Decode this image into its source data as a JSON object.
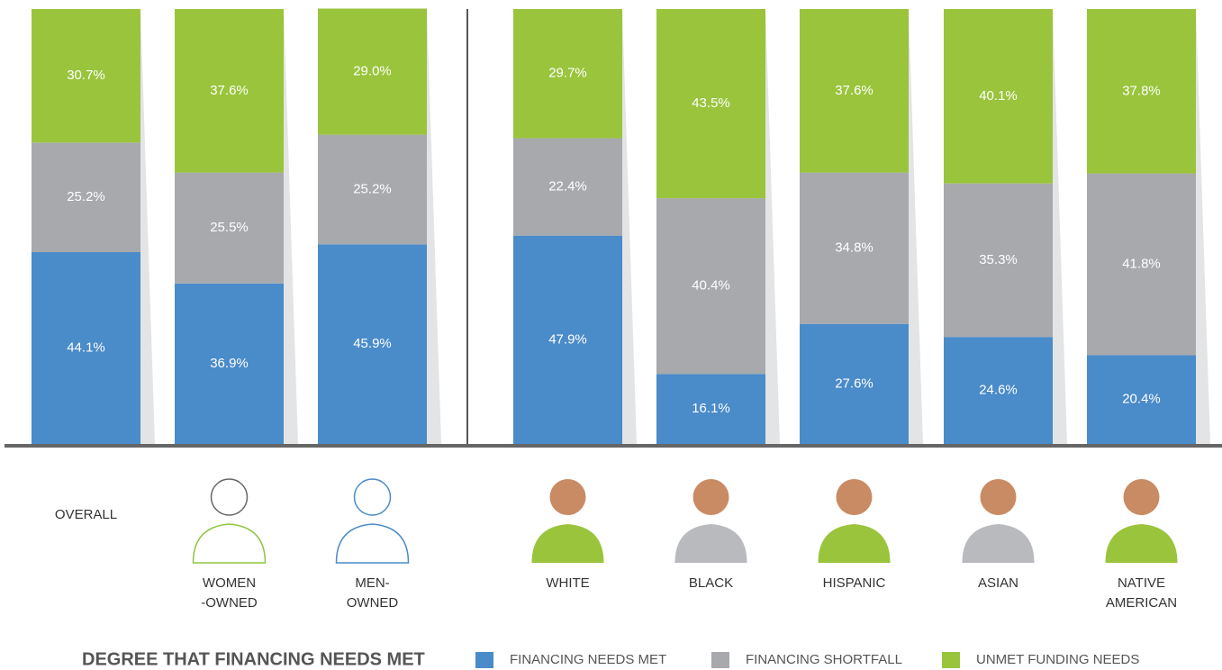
{
  "chart_data": {
    "type": "stacked_bar",
    "categories": [
      [
        "OVERALL"
      ],
      [
        "WOMEN",
        "-OWNED"
      ],
      [
        "MEN-",
        "OWNED"
      ],
      [
        "WHITE"
      ],
      [
        "BLACK"
      ],
      [
        "HISPANIC"
      ],
      [
        "ASIAN"
      ],
      [
        "NATIVE",
        "AMERICAN"
      ]
    ],
    "series": [
      {
        "name": "FINANCING NEEDS MET",
        "color": "#4a8bc9",
        "values": [
          44.1,
          36.9,
          45.9,
          47.9,
          16.1,
          27.6,
          24.6,
          20.4
        ],
        "value_labels": [
          "44.1%",
          "36.9%",
          "45.9%",
          "47.9%",
          "16.1%",
          "27.6%",
          "24.6%",
          "20.4%"
        ]
      },
      {
        "name": "FINANCING SHORTFALL",
        "color": "#a7a9ac",
        "values": [
          25.2,
          25.5,
          25.2,
          22.4,
          40.4,
          34.8,
          35.3,
          41.8
        ],
        "value_labels": [
          "25.2%",
          "25.5%",
          "25.2%",
          "22.4%",
          "40.4%",
          "34.8%",
          "35.3%",
          "41.8%"
        ]
      },
      {
        "name": "UNMET FUNDING NEEDS",
        "color": "#9ac43c",
        "values": [
          30.7,
          37.6,
          29.0,
          29.7,
          43.5,
          37.6,
          40.1,
          37.8
        ],
        "value_labels": [
          "30.7%",
          "37.6%",
          "29.0%",
          "29.7%",
          "43.5%",
          "37.6%",
          "40.1%",
          "37.8%"
        ]
      }
    ],
    "ylim": [
      0,
      100
    ],
    "legend_title": "DEGREE THAT FINANCING NEEDS MET",
    "legend": "bottom"
  }
}
